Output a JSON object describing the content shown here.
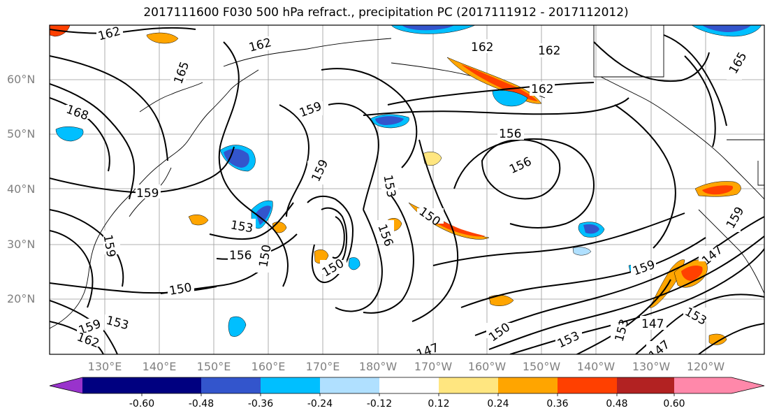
{
  "title": "2017111600 F030 500 hPa refract., precipitation PC (2017111912 - 2017112012)",
  "lat_labels": [
    "60°N",
    "50°N",
    "40°N",
    "30°N",
    "20°N"
  ],
  "lon_labels": [
    "130°E",
    "140°E",
    "150°E",
    "160°E",
    "170°E",
    "180°W",
    "170°W",
    "160°W",
    "150°W",
    "140°W",
    "130°W",
    "120°W"
  ],
  "contour_labels": [
    "162",
    "162",
    "162",
    "162",
    "162",
    "165",
    "165",
    "168",
    "159",
    "159",
    "159",
    "159",
    "159",
    "159",
    "156",
    "156",
    "156",
    "156",
    "153",
    "153",
    "153",
    "153",
    "150",
    "150",
    "150",
    "150",
    "150",
    "147",
    "147",
    "147",
    "147",
    "153",
    "159",
    "162",
    "153"
  ],
  "colorbar": {
    "ticks": [
      "-0.60",
      "-0.48",
      "-0.36",
      "-0.24",
      "-0.12",
      "0.12",
      "0.24",
      "0.36",
      "0.48",
      "0.60"
    ],
    "colors": [
      "#9933cc",
      "#000080",
      "#3355cc",
      "#00bfff",
      "#b0e0ff",
      "#ffffff",
      "#ffe680",
      "#ffa500",
      "#ff4000",
      "#b22222",
      "#ff88aa"
    ]
  }
}
